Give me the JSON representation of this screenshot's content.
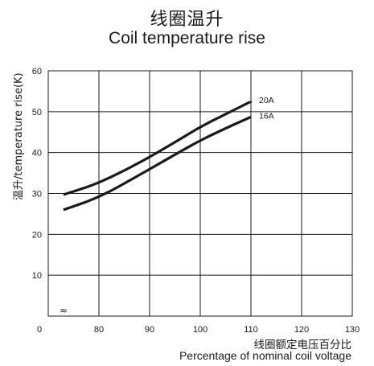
{
  "chart_data": {
    "type": "line",
    "title": "线圈温升",
    "subtitle": "Coil temperature rise",
    "ylabel": "温升/temperature rise(K)",
    "xlabel": "线圈额定电压百分比",
    "xlabel_en": "Percentage of nominal coil voltage",
    "xlim": [
      70,
      130
    ],
    "ylim": [
      0,
      60
    ],
    "x_ticks": [
      "0",
      "80",
      "90",
      "100",
      "110",
      "120",
      "130"
    ],
    "y_ticks": [
      "10",
      "20",
      "30",
      "40",
      "50",
      "60"
    ],
    "axis_break": "≈",
    "grid": true,
    "series": [
      {
        "name": "20A",
        "x": [
          73,
          80,
          88,
          95,
          100,
          106,
          110
        ],
        "y": [
          29.7,
          32.5,
          37.5,
          42.5,
          46.3,
          50.0,
          52.5
        ]
      },
      {
        "name": "16A",
        "x": [
          73,
          80,
          88,
          95,
          100,
          106,
          110
        ],
        "y": [
          26.0,
          29.0,
          34.5,
          39.5,
          43.0,
          46.5,
          48.7
        ]
      }
    ]
  }
}
